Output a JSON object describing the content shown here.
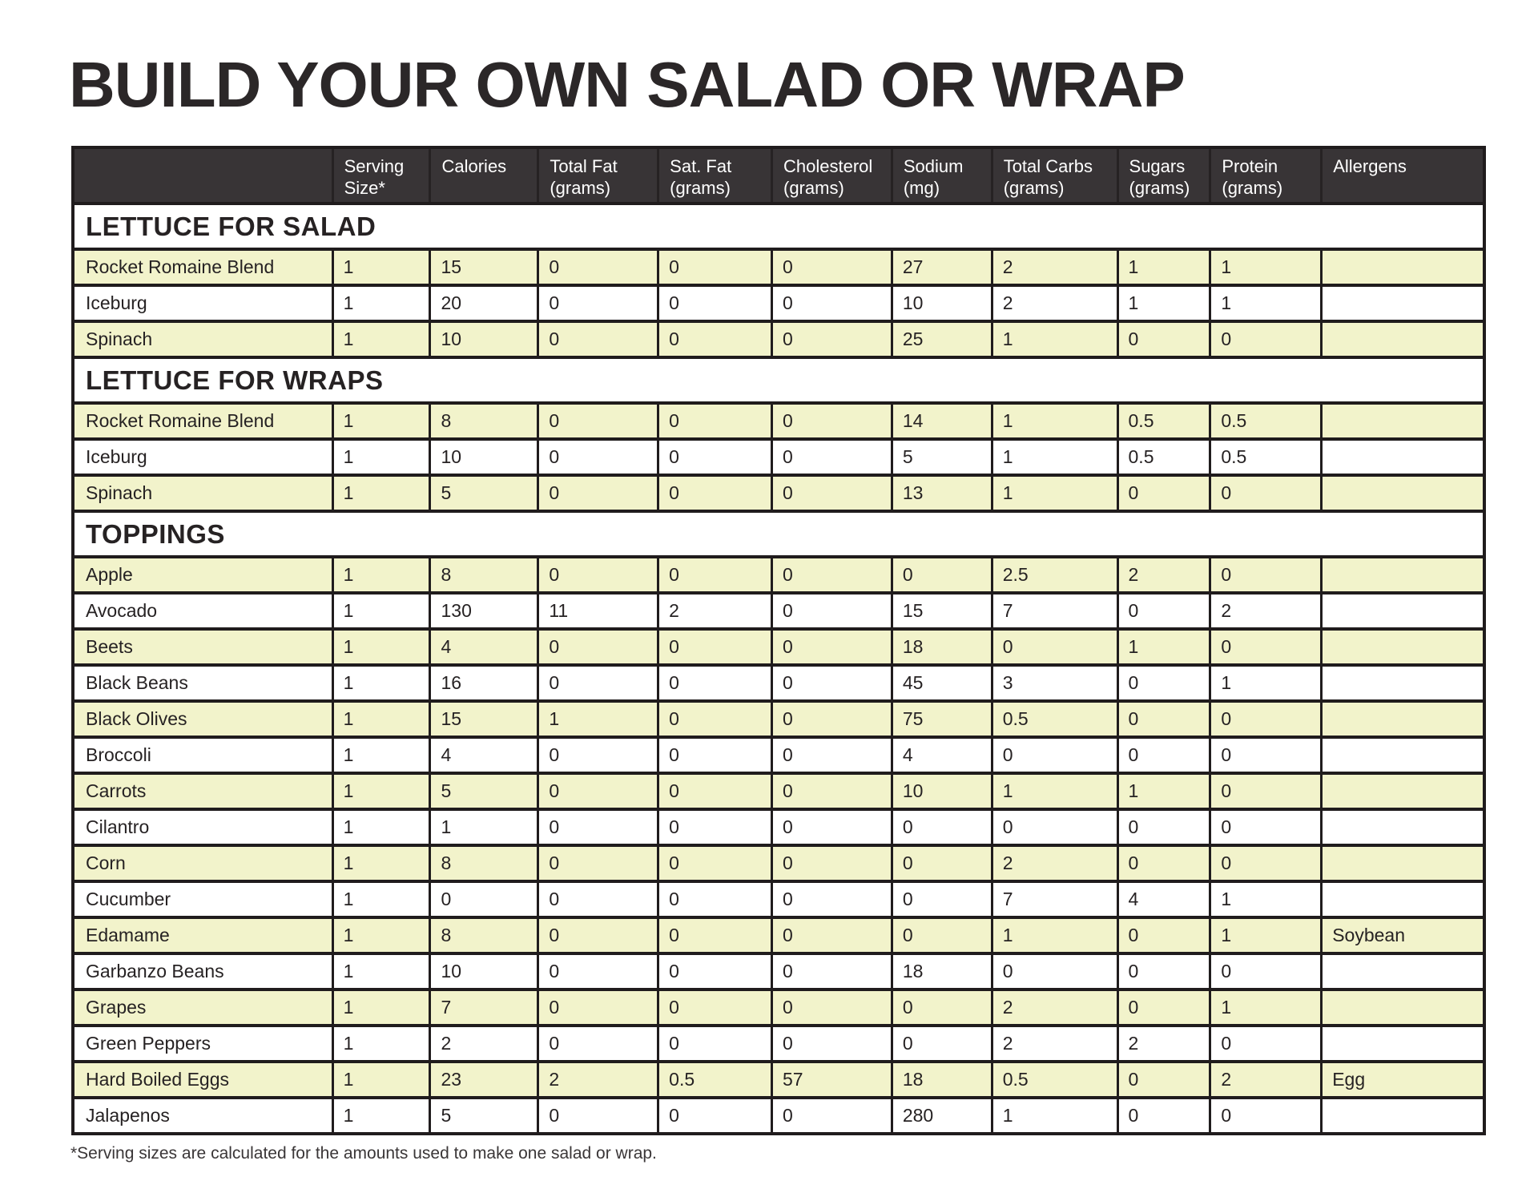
{
  "page": {
    "title": "BUILD YOUR OWN SALAD OR WRAP",
    "footnote": "*Serving sizes are calculated for the amounts used to make one salad or wrap."
  },
  "colors": {
    "header_bg": "#383436",
    "header_text": "#ffffff",
    "row_alt_bg": "#f2f3cb",
    "row_bg": "#ffffff",
    "border": "#201c1d",
    "text": "#262223"
  },
  "table": {
    "columns": [
      {
        "l1": "",
        "l2": ""
      },
      {
        "l1": "Serving",
        "l2": "Size*"
      },
      {
        "l1": "Calories",
        "l2": ""
      },
      {
        "l1": "Total Fat",
        "l2": "(grams)"
      },
      {
        "l1": "Sat. Fat",
        "l2": "(grams)"
      },
      {
        "l1": "Cholesterol",
        "l2": "(grams)"
      },
      {
        "l1": "Sodium",
        "l2": "(mg)"
      },
      {
        "l1": "Total Carbs",
        "l2": "(grams)"
      },
      {
        "l1": "Sugars",
        "l2": "(grams)"
      },
      {
        "l1": "Protein",
        "l2": "(grams)"
      },
      {
        "l1": "Allergens",
        "l2": ""
      }
    ],
    "sections": [
      {
        "title": "LETTUCE FOR SALAD",
        "rows": [
          {
            "name": "Rocket Romaine Blend",
            "values": [
              "1",
              "15",
              "0",
              "0",
              "0",
              "27",
              "2",
              "1",
              "1",
              ""
            ]
          },
          {
            "name": "Iceburg",
            "values": [
              "1",
              "20",
              "0",
              "0",
              "0",
              "10",
              "2",
              "1",
              "1",
              ""
            ]
          },
          {
            "name": "Spinach",
            "values": [
              "1",
              "10",
              "0",
              "0",
              "0",
              "25",
              "1",
              "0",
              "0",
              ""
            ]
          }
        ]
      },
      {
        "title": "LETTUCE FOR WRAPS",
        "rows": [
          {
            "name": "Rocket Romaine Blend",
            "values": [
              "1",
              "8",
              "0",
              "0",
              "0",
              "14",
              "1",
              "0.5",
              "0.5",
              ""
            ]
          },
          {
            "name": "Iceburg",
            "values": [
              "1",
              "10",
              "0",
              "0",
              "0",
              "5",
              "1",
              "0.5",
              "0.5",
              ""
            ]
          },
          {
            "name": "Spinach",
            "values": [
              "1",
              "5",
              "0",
              "0",
              "0",
              "13",
              "1",
              "0",
              "0",
              ""
            ]
          }
        ]
      },
      {
        "title": "TOPPINGS",
        "rows": [
          {
            "name": "Apple",
            "values": [
              "1",
              "8",
              "0",
              "0",
              "0",
              "0",
              "2.5",
              "2",
              "0",
              ""
            ]
          },
          {
            "name": "Avocado",
            "values": [
              "1",
              "130",
              "11",
              "2",
              "0",
              "15",
              "7",
              "0",
              "2",
              ""
            ]
          },
          {
            "name": "Beets",
            "values": [
              "1",
              "4",
              "0",
              "0",
              "0",
              "18",
              "0",
              "1",
              "0",
              ""
            ]
          },
          {
            "name": "Black Beans",
            "values": [
              "1",
              "16",
              "0",
              "0",
              "0",
              "45",
              "3",
              "0",
              "1",
              ""
            ]
          },
          {
            "name": "Black Olives",
            "values": [
              "1",
              "15",
              "1",
              "0",
              "0",
              "75",
              "0.5",
              "0",
              "0",
              ""
            ]
          },
          {
            "name": "Broccoli",
            "values": [
              "1",
              "4",
              "0",
              "0",
              "0",
              "4",
              "0",
              "0",
              "0",
              ""
            ]
          },
          {
            "name": "Carrots",
            "values": [
              "1",
              "5",
              "0",
              "0",
              "0",
              "10",
              "1",
              "1",
              "0",
              ""
            ]
          },
          {
            "name": "Cilantro",
            "values": [
              "1",
              "1",
              "0",
              "0",
              "0",
              "0",
              "0",
              "0",
              "0",
              ""
            ]
          },
          {
            "name": "Corn",
            "values": [
              "1",
              "8",
              "0",
              "0",
              "0",
              "0",
              "2",
              "0",
              "0",
              ""
            ]
          },
          {
            "name": "Cucumber",
            "values": [
              "1",
              "0",
              "0",
              "0",
              "0",
              "0",
              "7",
              "4",
              "1",
              ""
            ]
          },
          {
            "name": "Edamame",
            "values": [
              "1",
              "8",
              "0",
              "0",
              "0",
              "0",
              "1",
              "0",
              "1",
              "Soybean"
            ]
          },
          {
            "name": "Garbanzo Beans",
            "values": [
              "1",
              "10",
              "0",
              "0",
              "0",
              "18",
              "0",
              "0",
              "0",
              ""
            ]
          },
          {
            "name": "Grapes",
            "values": [
              "1",
              "7",
              "0",
              "0",
              "0",
              "0",
              "2",
              "0",
              "1",
              ""
            ]
          },
          {
            "name": "Green Peppers",
            "values": [
              "1",
              "2",
              "0",
              "0",
              "0",
              "0",
              "2",
              "2",
              "0",
              ""
            ]
          },
          {
            "name": "Hard Boiled Eggs",
            "values": [
              "1",
              "23",
              "2",
              "0.5",
              "57",
              "18",
              "0.5",
              "0",
              "2",
              "Egg"
            ]
          },
          {
            "name": "Jalapenos",
            "values": [
              "1",
              "5",
              "0",
              "0",
              "0",
              "280",
              "1",
              "0",
              "0",
              ""
            ]
          }
        ]
      }
    ]
  }
}
